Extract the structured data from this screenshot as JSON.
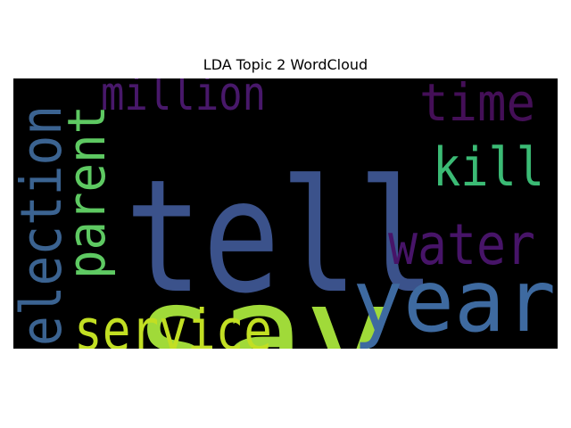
{
  "chart_data": {
    "type": "wordcloud",
    "title": "LDA Topic 2 WordCloud",
    "background": "#000000",
    "words": [
      {
        "text": "tell",
        "weight": 1.0,
        "color": "#3b528b"
      },
      {
        "text": "say",
        "weight": 0.95,
        "color": "#a0da39"
      },
      {
        "text": "year",
        "weight": 0.55,
        "color": "#3e6aa0"
      },
      {
        "text": "election",
        "weight": 0.36,
        "color": "#3b6391"
      },
      {
        "text": "service",
        "weight": 0.36,
        "color": "#c2df23"
      },
      {
        "text": "water",
        "weight": 0.36,
        "color": "#471468"
      },
      {
        "text": "parent",
        "weight": 0.33,
        "color": "#5ec962"
      },
      {
        "text": "million",
        "weight": 0.3,
        "color": "#48186a"
      },
      {
        "text": "time",
        "weight": 0.33,
        "color": "#440f57"
      },
      {
        "text": "kill",
        "weight": 0.34,
        "color": "#3bbb75"
      }
    ]
  }
}
